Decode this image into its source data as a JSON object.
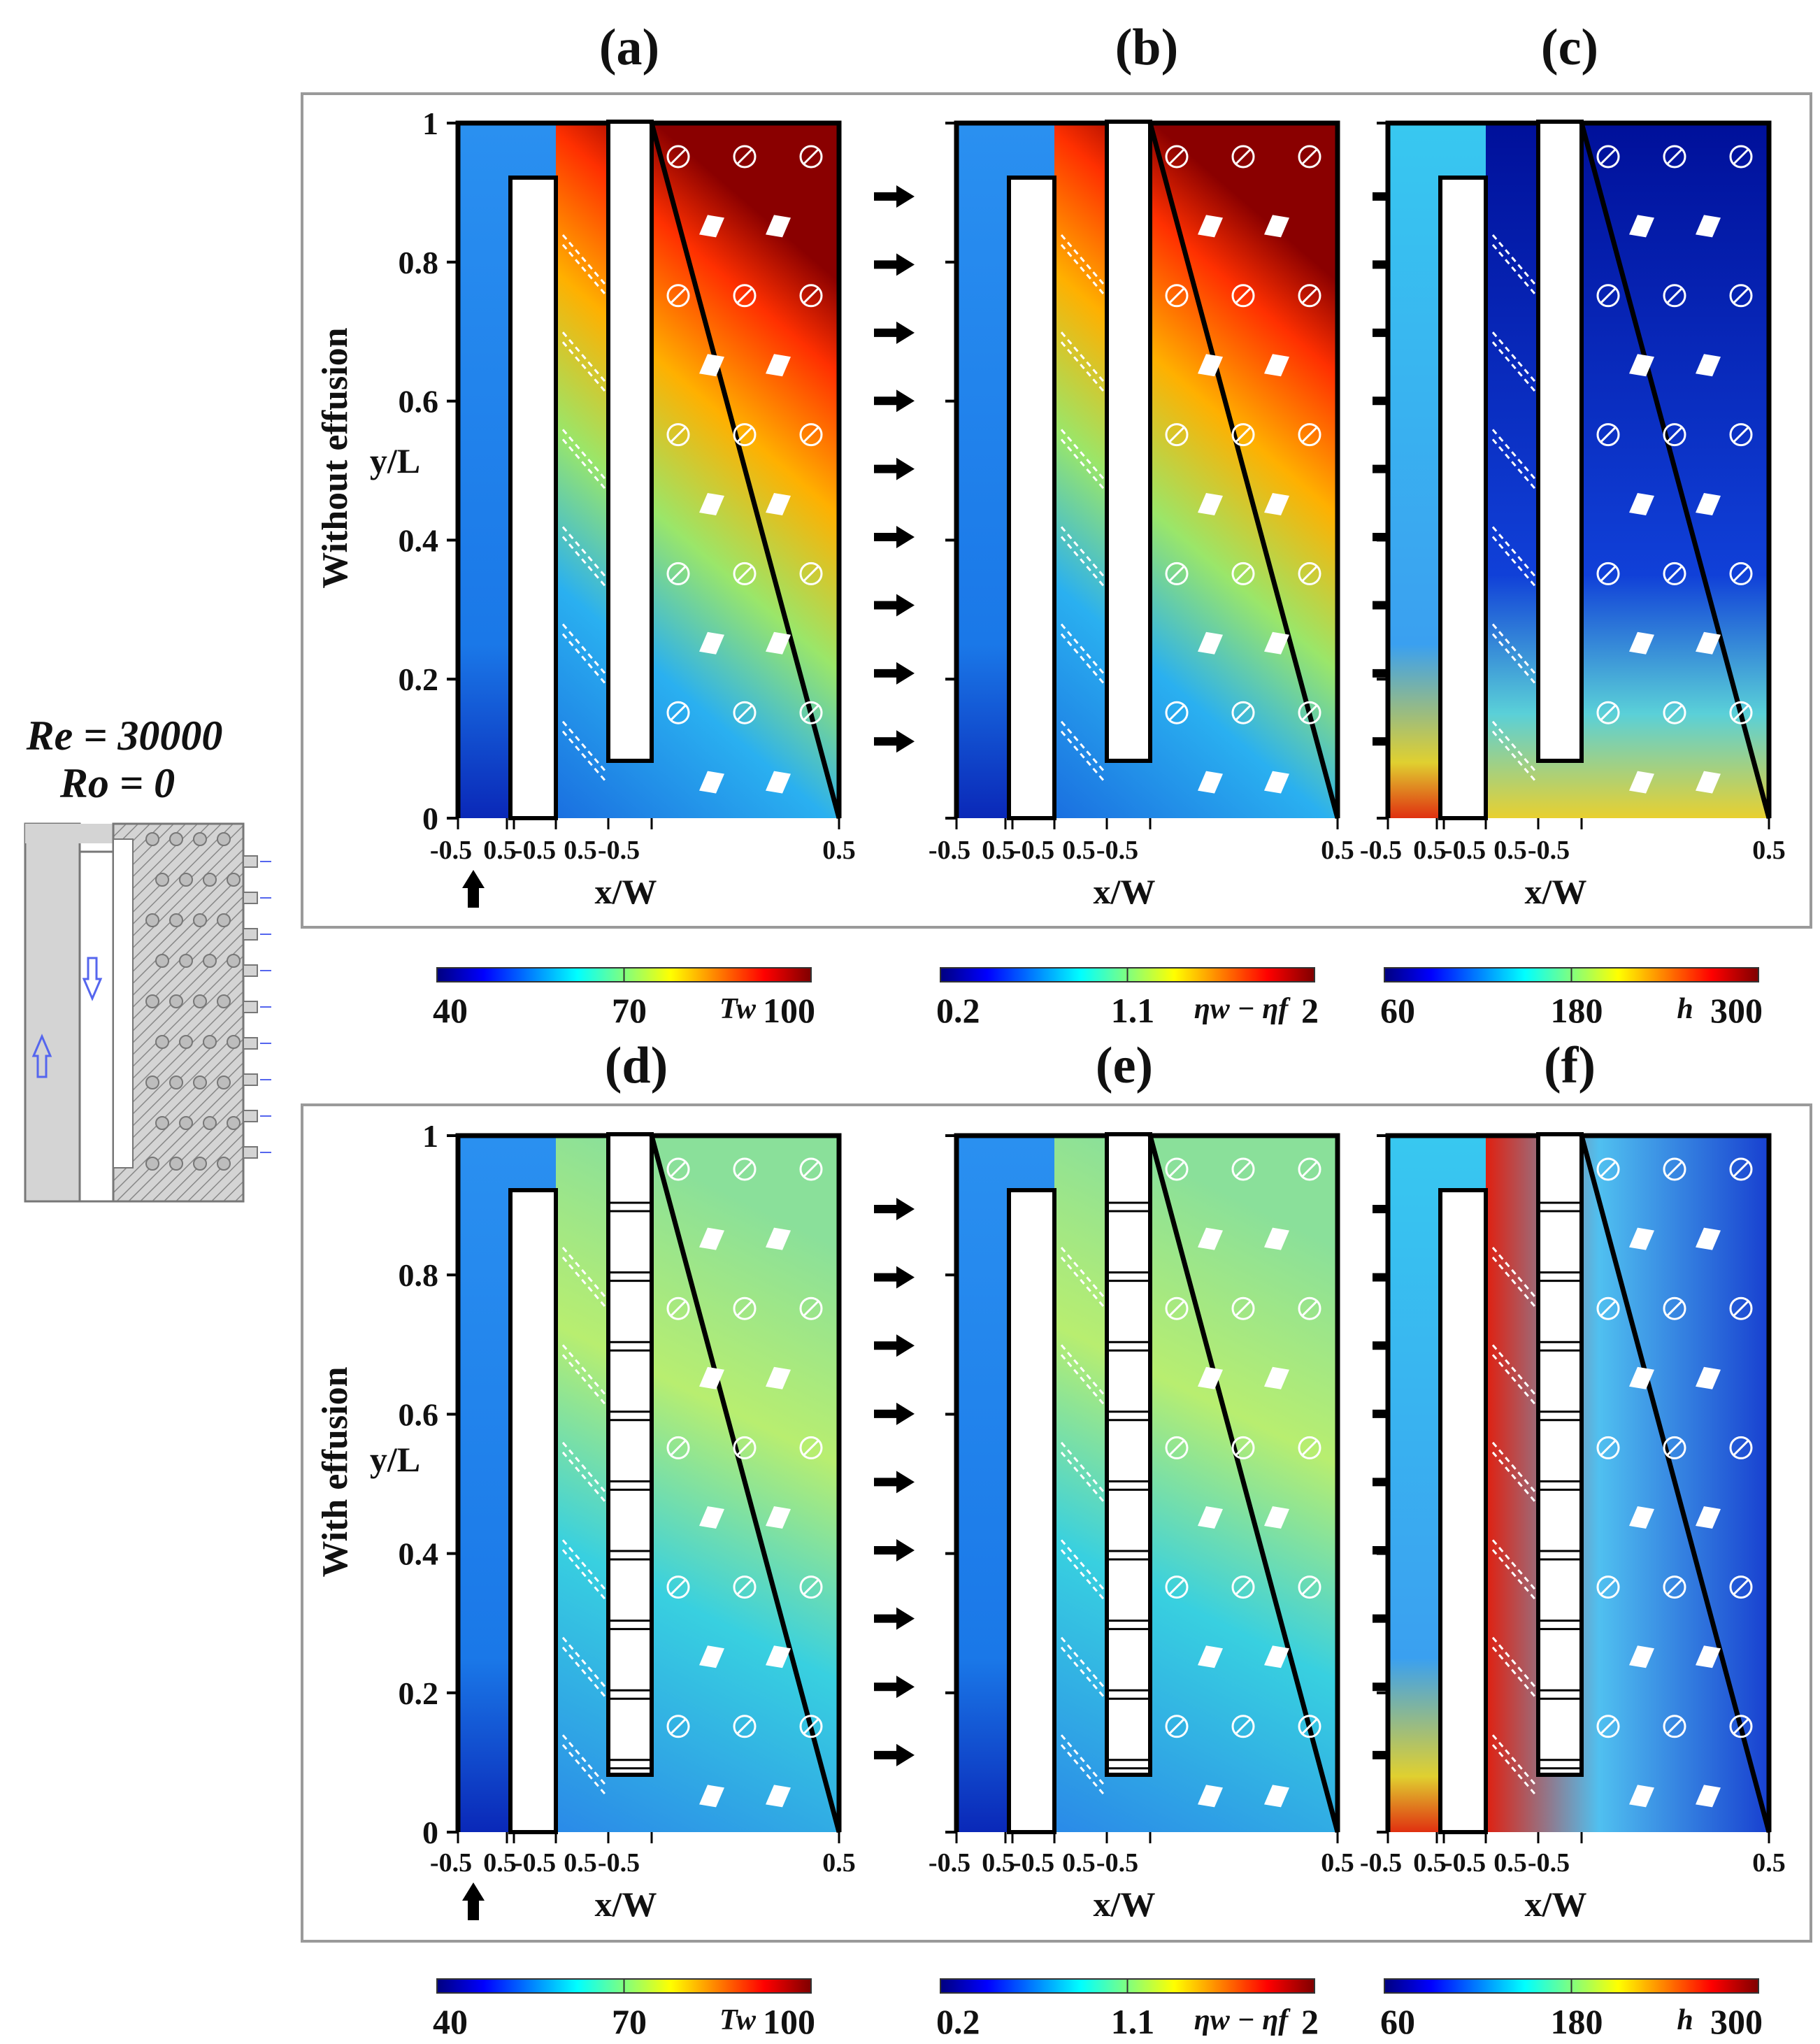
{
  "condition": {
    "re": "Re = 30000",
    "ro": "Ro = 0"
  },
  "rows": [
    {
      "label": "Without effusion",
      "panels": [
        "(a)",
        "(b)",
        "(c)"
      ],
      "effusion": false
    },
    {
      "label": "With effusion",
      "panels": [
        "(d)",
        "(e)",
        "(f)"
      ],
      "effusion": true
    }
  ],
  "axes": {
    "ylabel": "y/L",
    "xlabel": "x/W",
    "yticks": [
      "0",
      "0.2",
      "0.4",
      "0.6",
      "0.8",
      "1"
    ],
    "xticks": [
      "-0.5",
      "0.5",
      "-0.5",
      "0.5",
      "-0.5",
      "0.5"
    ]
  },
  "colorbars": [
    {
      "min": "40",
      "mid": "70",
      "symbol": "Tw",
      "max": "100"
    },
    {
      "min": "0.2",
      "mid": "1.1",
      "symbol": "ηw − ηf",
      "max": "2"
    },
    {
      "min": "60",
      "mid": "180",
      "symbol": "h",
      "max": "300"
    }
  ],
  "colors": {
    "frame": "#9a9a9a",
    "schematic_fill": "#d4d4d4",
    "flow_arrow": "#5566ee",
    "jet": [
      "#00007f",
      "#0000ff",
      "#007fff",
      "#00ffff",
      "#7fff7f",
      "#ffff00",
      "#ff7f00",
      "#ff0000",
      "#7f0000"
    ]
  },
  "chart_data": [
    {
      "type": "heatmap",
      "panel": "(a)",
      "quantity": "Tw",
      "range": [
        40,
        100
      ],
      "effusion": false
    },
    {
      "type": "heatmap",
      "panel": "(b)",
      "quantity": "ηw − ηf",
      "range": [
        0.2,
        2
      ],
      "effusion": false
    },
    {
      "type": "heatmap",
      "panel": "(c)",
      "quantity": "h",
      "range": [
        60,
        300
      ],
      "effusion": false
    },
    {
      "type": "heatmap",
      "panel": "(d)",
      "quantity": "Tw",
      "range": [
        40,
        100
      ],
      "effusion": true
    },
    {
      "type": "heatmap",
      "panel": "(e)",
      "quantity": "ηw − ηf",
      "range": [
        0.2,
        2
      ],
      "effusion": true
    },
    {
      "type": "heatmap",
      "panel": "(f)",
      "quantity": "h",
      "range": [
        60,
        300
      ],
      "effusion": true
    }
  ]
}
